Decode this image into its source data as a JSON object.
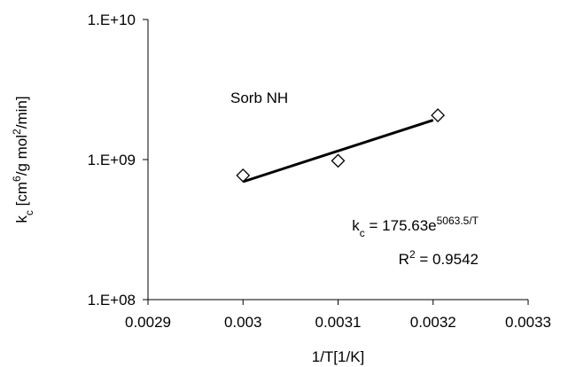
{
  "chart_data": {
    "type": "scatter",
    "series": [
      {
        "name": "Sorb NH",
        "color": "#000000",
        "marker": "diamond",
        "x": [
          0.003,
          0.0031,
          0.003205
        ],
        "values": [
          770000000,
          980000000,
          2070000000
        ]
      },
      {
        "color": "#000000",
        "line": true,
        "x": [
          0.003,
          0.0032
        ],
        "values": [
          694700000,
          1912000000
        ]
      }
    ],
    "xlim": [
      0.0029,
      0.0033
    ],
    "xticks": [
      0.0029,
      0.003,
      0.0031,
      0.0032,
      0.0033
    ],
    "ylim": [
      100000000,
      10000000000
    ],
    "yticks": [
      {
        "value": 100000000,
        "label": "1.E+08"
      },
      {
        "value": 1000000000,
        "label": "1.E+09"
      },
      {
        "value": 10000000000,
        "label": "1.E+10"
      }
    ],
    "log_y": true,
    "grid": false,
    "x_label": [
      "1/T[1/K]"
    ],
    "y_label": [
      "k",
      "c",
      " [cm",
      "6",
      "/g mol",
      "2",
      "/min]"
    ],
    "annotations": [
      [
        "k",
        "c",
        " = 175.63e",
        "5063.5/T"
      ],
      [
        "R",
        "2",
        " = 0.9542"
      ]
    ]
  }
}
